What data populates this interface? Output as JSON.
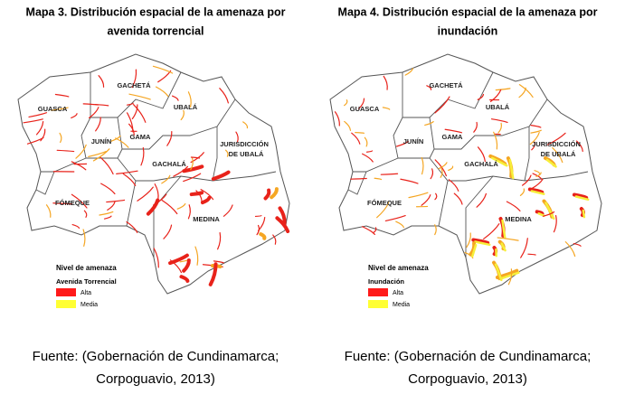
{
  "maps": [
    {
      "title_lines": [
        "Mapa 3. Distribución espacial de la amenaza por",
        "avenida torrencial"
      ],
      "regions": [
        [
          "GACHETÁ"
        ],
        [
          "GUASCA"
        ],
        [
          "UBALÁ"
        ],
        [
          "JUNÍN"
        ],
        [
          "GAMA"
        ],
        [
          "JURISDICCIÓN",
          "DE UBALÁ"
        ],
        [
          "GACHALÁ"
        ],
        [
          "FÓMEQUE"
        ],
        [
          "MEDINA"
        ]
      ],
      "legend": {
        "title": "Nivel de amenaza",
        "subtitle": "Avenida Torrencial",
        "items": [
          "Alta",
          "Media"
        ]
      },
      "source_lines": [
        "Fuente: (Gobernación de Cundinamarca;",
        "Corpoguavio, 2013)"
      ]
    },
    {
      "title_lines": [
        "Mapa 4. Distribución espacial de la amenaza por",
        "inundación"
      ],
      "regions": [
        [
          "GACHETÁ"
        ],
        [
          "GUASCA"
        ],
        [
          "UBALÁ"
        ],
        [
          "JUNÍN"
        ],
        [
          "GAMA"
        ],
        [
          "JURISDICCIÓN",
          "DE UBALÁ"
        ],
        [
          "GACHALÁ"
        ],
        [
          "FÓMEQUE"
        ],
        [
          "MEDINA"
        ]
      ],
      "legend": {
        "title": "Nivel de amenaza",
        "subtitle": "Inundación",
        "items": [
          "Alta",
          "Media"
        ]
      },
      "source_lines": [
        "Fuente: (Gobernación de Cundinamarca;",
        "Corpoguavio, 2013)"
      ]
    }
  ]
}
